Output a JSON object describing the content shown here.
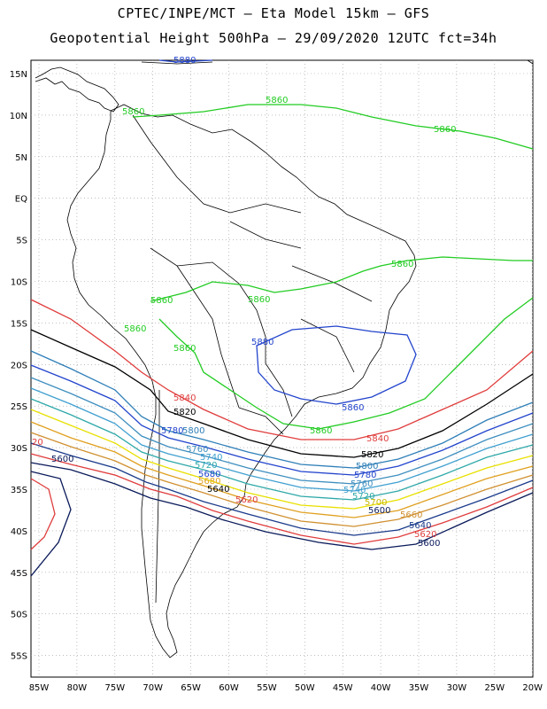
{
  "header": {
    "line1": "CPTEC/INPE/MCT –  Eta Model 15km – GFS",
    "line2": "Geopotential Height 500hPa – 29/09/2020 12UTC fct=34h"
  },
  "axes": {
    "lat_ticks": [
      "15N",
      "10N",
      "5N",
      "EQ",
      "5S",
      "10S",
      "15S",
      "20S",
      "25S",
      "30S",
      "35S",
      "40S",
      "45S",
      "50S",
      "55S"
    ],
    "lon_ticks": [
      "85W",
      "80W",
      "75W",
      "70W",
      "65W",
      "60W",
      "55W",
      "50W",
      "45W",
      "40W",
      "35W",
      "30W",
      "25W",
      "20W"
    ]
  },
  "contours": [
    {
      "value": "5860",
      "color": "#22cc22"
    },
    {
      "value": "5840",
      "color": "#e03c3c"
    },
    {
      "value": "5820",
      "color": "#000000"
    },
    {
      "value": "5800",
      "color": "#2f7fb8"
    },
    {
      "value": "5780",
      "color": "#2244cc"
    },
    {
      "value": "5760",
      "color": "#3f8fbf"
    },
    {
      "value": "5740",
      "color": "#40a0d0"
    },
    {
      "value": "5720",
      "color": "#2fa8a8"
    },
    {
      "value": "5700",
      "color": "#e8e000"
    },
    {
      "value": "5680",
      "color": "#e0a020"
    },
    {
      "value": "5660",
      "color": "#d09030"
    },
    {
      "value": "5640",
      "color": "#1a3a8a"
    },
    {
      "value": "5620",
      "color": "#e03c3c"
    },
    {
      "value": "5600",
      "color": "#0a1a5a"
    }
  ],
  "contour_labels": [
    {
      "text": "5860",
      "color": "#22cc22"
    },
    {
      "text": "5860",
      "color": "#22cc22"
    },
    {
      "text": "5860",
      "color": "#22cc22"
    },
    {
      "text": "5860",
      "color": "#22cc22"
    },
    {
      "text": "5860",
      "color": "#22cc22"
    },
    {
      "text": "5860",
      "color": "#22cc22"
    },
    {
      "text": "5860",
      "color": "#22cc22"
    },
    {
      "text": "5860",
      "color": "#22cc22"
    },
    {
      "text": "5880",
      "color": "#2244cc"
    },
    {
      "text": "5860",
      "color": "#2244cc"
    },
    {
      "text": "5860",
      "color": "#22cc22"
    },
    {
      "text": "5840",
      "color": "#e03c3c"
    },
    {
      "text": "5840",
      "color": "#e03c3c"
    },
    {
      "text": "5820",
      "color": "#000000"
    },
    {
      "text": "5820",
      "color": "#000000"
    },
    {
      "text": "5800",
      "color": "#2f7fb8"
    },
    {
      "text": "5800",
      "color": "#2f7fb8"
    },
    {
      "text": "5780",
      "color": "#2244cc"
    },
    {
      "text": "5780",
      "color": "#2244cc"
    },
    {
      "text": "5760",
      "color": "#3f8fbf"
    },
    {
      "text": "5760",
      "color": "#3f8fbf"
    },
    {
      "text": "5740",
      "color": "#40a0d0"
    },
    {
      "text": "5740",
      "color": "#40a0d0"
    },
    {
      "text": "5720",
      "color": "#2fa8a8"
    },
    {
      "text": "5720",
      "color": "#2fa8a8"
    },
    {
      "text": "5700",
      "color": "#c8b800"
    },
    {
      "text": "5680",
      "color": "#e0a020"
    },
    {
      "text": "5680",
      "color": "#2244cc"
    },
    {
      "text": "5660",
      "color": "#d09030"
    },
    {
      "text": "5640",
      "color": "#000000"
    },
    {
      "text": "5640",
      "color": "#1a3a8a"
    },
    {
      "text": "5620",
      "color": "#e03c3c"
    },
    {
      "text": "5620",
      "color": "#e03c3c"
    },
    {
      "text": "5600",
      "color": "#0a1a5a"
    },
    {
      "text": "5600",
      "color": "#0a1a5a"
    },
    {
      "text": "5600",
      "color": "#0a1a5a"
    },
    {
      "text": "5880",
      "color": "#2244cc"
    },
    {
      "text": "20",
      "color": "#e03c3c"
    }
  ]
}
